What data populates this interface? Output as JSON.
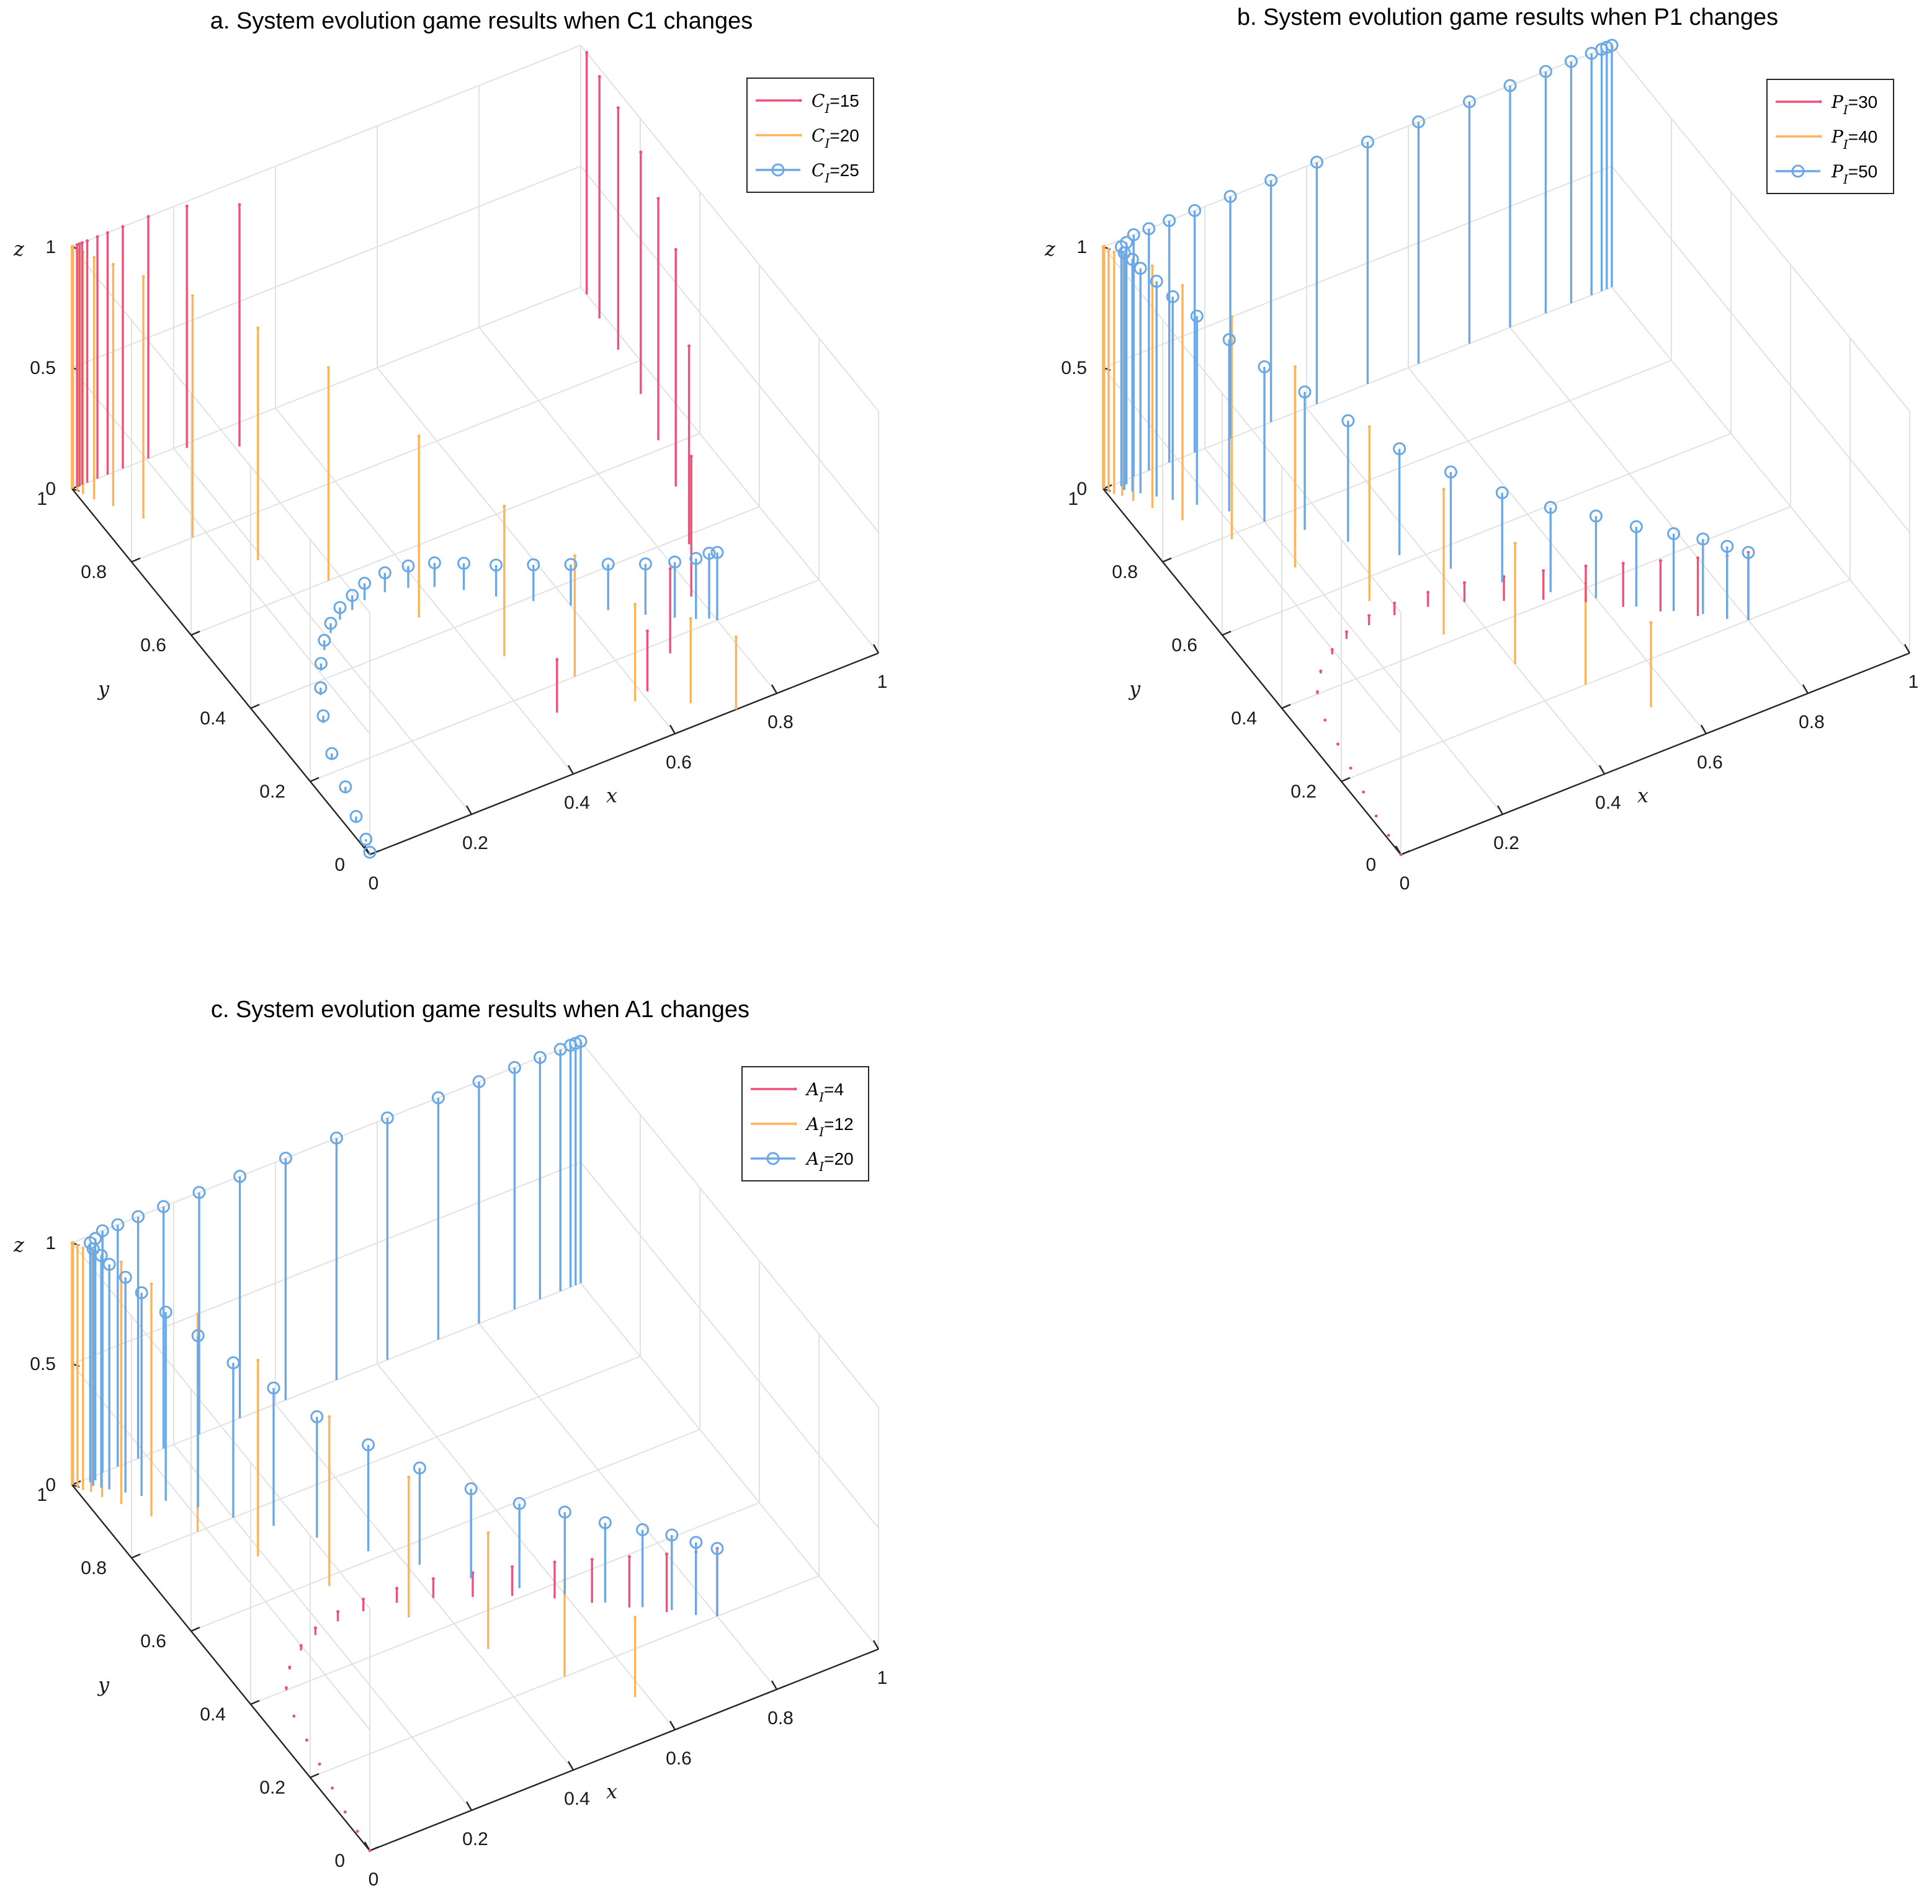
{
  "figure": {
    "colors": {
      "s1": "#f0507a",
      "s2": "#fcb35c",
      "s3": "#6aa8e6"
    }
  },
  "chart_data": [
    {
      "type": "stem3",
      "title": "a. System evolution game results when C1 changes",
      "xlabel": "x",
      "ylabel": "y",
      "zlabel": "z",
      "xlim": [
        0,
        1
      ],
      "ylim": [
        0,
        1
      ],
      "zlim": [
        0,
        1
      ],
      "xticks": [
        "0",
        "0.2",
        "0.4",
        "0.6",
        "0.8",
        "1"
      ],
      "yticks": [
        "0",
        "0.2",
        "0.4",
        "0.6",
        "0.8",
        "1"
      ],
      "zticks": [
        "0",
        "0.5",
        "1"
      ],
      "legend_position": "top-right",
      "series": [
        {
          "name": "C_I=15",
          "var": "C",
          "sub": "I",
          "val": "=15",
          "color": "#f0507a",
          "marker": "dot",
          "x": [
            0.45,
            0.61,
            0.69,
            0.79,
            0.85,
            0.9,
            0.93,
            0.96,
            0.98,
            0.99,
            1.0,
            0.3,
            0.22,
            0.15,
            0.1,
            0.07,
            0.05,
            0.03,
            0.02,
            0.015,
            0.01
          ],
          "y": [
            0.14,
            0.11,
            0.17,
            0.27,
            0.38,
            0.51,
            0.62,
            0.73,
            0.84,
            0.92,
            0.98,
            0.95,
            0.99,
            1.0,
            1.0,
            1.0,
            1.0,
            1.0,
            1.0,
            1.0,
            1.0
          ],
          "z": [
            0.22,
            0.25,
            0.35,
            0.58,
            0.82,
            0.98,
            1.0,
            1.0,
            1.0,
            1.0,
            1.0,
            1.0,
            1.0,
            1.0,
            1.0,
            1.0,
            1.0,
            1.0,
            1.0,
            1.0,
            1.0
          ]
        },
        {
          "name": "C_I=20",
          "var": "C",
          "sub": "I",
          "val": "=20",
          "color": "#fcb35c",
          "marker": "dot",
          "x": [
            0.72,
            0.66,
            0.58,
            0.52,
            0.44,
            0.36,
            0.27,
            0.19,
            0.12,
            0.07,
            0.04,
            0.02,
            0.01,
            0.005,
            0.002,
            0.001,
            0.0,
            0.0
          ],
          "y": [
            0.0,
            0.05,
            0.1,
            0.2,
            0.3,
            0.45,
            0.6,
            0.7,
            0.8,
            0.88,
            0.93,
            0.96,
            0.98,
            0.99,
            1.0,
            1.0,
            1.0,
            1.0
          ],
          "z": [
            0.3,
            0.35,
            0.4,
            0.5,
            0.62,
            0.75,
            0.88,
            0.96,
            1.0,
            1.0,
            1.0,
            1.0,
            1.0,
            1.0,
            1.0,
            1.0,
            1.0,
            1.0
          ]
        },
        {
          "name": "C_I=25",
          "var": "C",
          "sub": "I",
          "val": "=25",
          "color": "#6aa8e6",
          "marker": "circle",
          "x": [
            0.0,
            0.01,
            0.02,
            0.04,
            0.06,
            0.09,
            0.12,
            0.15,
            0.18,
            0.21,
            0.24,
            0.27,
            0.3,
            0.34,
            0.38,
            0.42,
            0.46,
            0.5,
            0.55,
            0.6,
            0.65,
            0.7,
            0.74,
            0.77,
            0.79,
            0.8
          ],
          "y": [
            0.0,
            0.03,
            0.08,
            0.15,
            0.23,
            0.31,
            0.37,
            0.42,
            0.46,
            0.49,
            0.51,
            0.52,
            0.53,
            0.53,
            0.52,
            0.5,
            0.47,
            0.43,
            0.39,
            0.35,
            0.31,
            0.27,
            0.24,
            0.22,
            0.21,
            0.2
          ],
          "z": [
            0.01,
            0.01,
            0.02,
            0.02,
            0.02,
            0.03,
            0.03,
            0.03,
            0.04,
            0.04,
            0.05,
            0.06,
            0.07,
            0.08,
            0.09,
            0.1,
            0.11,
            0.13,
            0.15,
            0.17,
            0.19,
            0.21,
            0.23,
            0.25,
            0.27,
            0.28
          ]
        }
      ]
    },
    {
      "type": "stem3",
      "title": "b. System evolution game results when P1 changes",
      "xlabel": "x",
      "ylabel": "y",
      "zlabel": "z",
      "xlim": [
        0,
        1
      ],
      "ylim": [
        0,
        1
      ],
      "zlim": [
        0,
        1
      ],
      "xticks": [
        "0",
        "0.2",
        "0.4",
        "0.6",
        "0.8",
        "1"
      ],
      "yticks": [
        "0",
        "0.2",
        "0.4",
        "0.6",
        "0.8",
        "1"
      ],
      "zticks": [
        "0",
        "0.5",
        "1"
      ],
      "legend_position": "top-right",
      "series": [
        {
          "name": "P_I=30",
          "var": "P",
          "sub": "I",
          "val": "=30",
          "color": "#f0507a",
          "marker": "dot",
          "x": [
            0.0,
            0.005,
            0.01,
            0.02,
            0.03,
            0.04,
            0.05,
            0.07,
            0.1,
            0.14,
            0.18,
            0.23,
            0.28,
            0.34,
            0.4,
            0.46,
            0.52,
            0.58,
            0.63,
            0.68,
            0.73,
            0.77,
            0.8
          ],
          "y": [
            0.0,
            0.05,
            0.1,
            0.16,
            0.22,
            0.28,
            0.34,
            0.4,
            0.44,
            0.47,
            0.49,
            0.5,
            0.5,
            0.49,
            0.47,
            0.44,
            0.41,
            0.37,
            0.33,
            0.29,
            0.25,
            0.22,
            0.2
          ],
          "z": [
            0.0,
            0.0,
            0.0,
            0.0,
            0.0,
            0.0,
            0.0,
            0.01,
            0.01,
            0.02,
            0.03,
            0.04,
            0.05,
            0.06,
            0.08,
            0.1,
            0.12,
            0.15,
            0.18,
            0.21,
            0.24,
            0.26,
            0.28
          ]
        },
        {
          "name": "P_I=40",
          "var": "P",
          "sub": "I",
          "val": "=40",
          "color": "#fcb35c",
          "marker": "dot",
          "x": [
            0.55,
            0.48,
            0.4,
            0.33,
            0.26,
            0.19,
            0.13,
            0.08,
            0.05,
            0.03,
            0.02,
            0.01,
            0.005,
            0.002,
            0.001,
            0.0
          ],
          "y": [
            0.1,
            0.2,
            0.3,
            0.42,
            0.55,
            0.68,
            0.79,
            0.87,
            0.92,
            0.95,
            0.97,
            0.98,
            0.99,
            1.0,
            1.0,
            1.0
          ],
          "z": [
            0.35,
            0.42,
            0.5,
            0.6,
            0.72,
            0.83,
            0.92,
            0.97,
            1.0,
            1.0,
            1.0,
            1.0,
            1.0,
            1.0,
            1.0,
            1.0
          ]
        },
        {
          "name": "P_I=50",
          "var": "P",
          "sub": "I",
          "val": "=50",
          "color": "#6aa8e6",
          "marker": "circle",
          "x": [
            0.8,
            0.77,
            0.74,
            0.7,
            0.65,
            0.6,
            0.54,
            0.48,
            0.42,
            0.36,
            0.3,
            0.25,
            0.2,
            0.16,
            0.12,
            0.09,
            0.07,
            0.05,
            0.04,
            0.03,
            0.03,
            0.04,
            0.06,
            0.09,
            0.13,
            0.18,
            0.25,
            0.33,
            0.42,
            0.52,
            0.62,
            0.72,
            0.8,
            0.87,
            0.92,
            0.96,
            0.98,
            0.99,
            1.0
          ],
          "y": [
            0.2,
            0.22,
            0.25,
            0.28,
            0.32,
            0.37,
            0.42,
            0.48,
            0.55,
            0.62,
            0.69,
            0.75,
            0.8,
            0.85,
            0.89,
            0.92,
            0.94,
            0.96,
            0.97,
            0.98,
            0.99,
            0.99,
            1.0,
            1.0,
            1.0,
            1.0,
            1.0,
            1.0,
            1.0,
            1.0,
            1.0,
            1.0,
            1.0,
            1.0,
            1.0,
            1.0,
            1.0,
            1.0,
            1.0
          ],
          "z": [
            0.28,
            0.3,
            0.31,
            0.32,
            0.33,
            0.34,
            0.35,
            0.37,
            0.4,
            0.44,
            0.5,
            0.57,
            0.64,
            0.71,
            0.78,
            0.84,
            0.89,
            0.93,
            0.96,
            0.98,
            0.99,
            1.0,
            1.0,
            1.0,
            1.0,
            1.0,
            1.0,
            1.0,
            1.0,
            1.0,
            1.0,
            1.0,
            1.0,
            1.0,
            1.0,
            1.0,
            1.0,
            1.0,
            1.0
          ]
        }
      ]
    },
    {
      "type": "stem3",
      "title": "c. System evolution game results when A1 changes",
      "xlabel": "x",
      "ylabel": "y",
      "zlabel": "z",
      "xlim": [
        0,
        1
      ],
      "ylim": [
        0,
        1
      ],
      "zlim": [
        0,
        1
      ],
      "xticks": [
        "0",
        "0.2",
        "0.4",
        "0.6",
        "0.8",
        "1"
      ],
      "yticks": [
        "0",
        "0.2",
        "0.4",
        "0.6",
        "0.8",
        "1"
      ],
      "zticks": [
        "0",
        "0.5",
        "1"
      ],
      "legend_position": "top-right",
      "series": [
        {
          "name": "A_I=4",
          "var": "A",
          "sub": "I",
          "val": "=4",
          "color": "#f0507a",
          "marker": "dot",
          "x": [
            0.0,
            0.005,
            0.01,
            0.02,
            0.03,
            0.04,
            0.05,
            0.07,
            0.1,
            0.14,
            0.18,
            0.23,
            0.28,
            0.34,
            0.4,
            0.46,
            0.52,
            0.58,
            0.63,
            0.68,
            0.73,
            0.77,
            0.8
          ],
          "y": [
            0.0,
            0.05,
            0.1,
            0.16,
            0.22,
            0.28,
            0.34,
            0.4,
            0.44,
            0.47,
            0.49,
            0.5,
            0.5,
            0.49,
            0.47,
            0.44,
            0.41,
            0.37,
            0.33,
            0.29,
            0.25,
            0.22,
            0.2
          ],
          "z": [
            0.0,
            0.0,
            0.0,
            0.0,
            0.0,
            0.0,
            0.0,
            0.01,
            0.01,
            0.02,
            0.03,
            0.04,
            0.05,
            0.06,
            0.08,
            0.1,
            0.12,
            0.15,
            0.18,
            0.21,
            0.24,
            0.26,
            0.28
          ]
        },
        {
          "name": "A_I=12",
          "var": "A",
          "sub": "I",
          "val": "=12",
          "color": "#fcb35c",
          "marker": "dot",
          "x": [
            0.58,
            0.5,
            0.42,
            0.34,
            0.26,
            0.19,
            0.13,
            0.08,
            0.05,
            0.03,
            0.02,
            0.01,
            0.005,
            0.002,
            0.001,
            0.0
          ],
          "y": [
            0.1,
            0.2,
            0.32,
            0.45,
            0.58,
            0.7,
            0.8,
            0.87,
            0.92,
            0.95,
            0.97,
            0.98,
            0.99,
            1.0,
            1.0,
            1.0
          ],
          "z": [
            0.33,
            0.4,
            0.48,
            0.58,
            0.7,
            0.81,
            0.9,
            0.96,
            1.0,
            1.0,
            1.0,
            1.0,
            1.0,
            1.0,
            1.0,
            1.0
          ]
        },
        {
          "name": "A_I=20",
          "var": "A",
          "sub": "I",
          "val": "=20",
          "color": "#6aa8e6",
          "marker": "circle",
          "x": [
            0.8,
            0.77,
            0.74,
            0.7,
            0.65,
            0.6,
            0.54,
            0.48,
            0.42,
            0.36,
            0.3,
            0.25,
            0.2,
            0.16,
            0.12,
            0.09,
            0.07,
            0.05,
            0.04,
            0.03,
            0.03,
            0.04,
            0.06,
            0.09,
            0.13,
            0.18,
            0.25,
            0.33,
            0.42,
            0.52,
            0.62,
            0.72,
            0.8,
            0.87,
            0.92,
            0.96,
            0.98,
            0.99,
            1.0
          ],
          "y": [
            0.2,
            0.22,
            0.25,
            0.28,
            0.32,
            0.37,
            0.42,
            0.48,
            0.55,
            0.62,
            0.69,
            0.75,
            0.8,
            0.85,
            0.89,
            0.92,
            0.94,
            0.96,
            0.97,
            0.98,
            0.99,
            0.99,
            1.0,
            1.0,
            1.0,
            1.0,
            1.0,
            1.0,
            1.0,
            1.0,
            1.0,
            1.0,
            1.0,
            1.0,
            1.0,
            1.0,
            1.0,
            1.0,
            1.0
          ],
          "z": [
            0.28,
            0.3,
            0.31,
            0.32,
            0.33,
            0.34,
            0.35,
            0.37,
            0.4,
            0.44,
            0.5,
            0.57,
            0.64,
            0.71,
            0.78,
            0.84,
            0.89,
            0.93,
            0.96,
            0.98,
            0.99,
            1.0,
            1.0,
            1.0,
            1.0,
            1.0,
            1.0,
            1.0,
            1.0,
            1.0,
            1.0,
            1.0,
            1.0,
            1.0,
            1.0,
            1.0,
            1.0,
            1.0,
            1.0
          ]
        }
      ]
    }
  ]
}
